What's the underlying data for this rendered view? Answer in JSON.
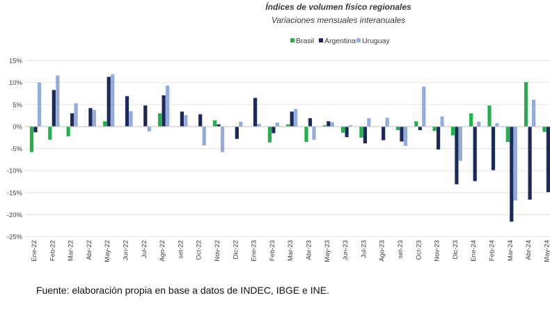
{
  "chart_data": {
    "type": "bar",
    "title": "Índices de volumen físico regionales",
    "subtitle": "Variaciones mensuales interanuales",
    "categories": [
      "Ene-22",
      "Feb-22",
      "Mar-22",
      "Abr-22",
      "May-22",
      "Jun-22",
      "Jul-22",
      "Ago-22",
      "set-22",
      "Oct-22",
      "Nov-22",
      "Dic-22",
      "Ene-23",
      "Feb-23",
      "Mar-23",
      "Abr-23",
      "May-23",
      "Jun-23",
      "Jul-23",
      "Ago-23",
      "set-23",
      "Oct-23",
      "Nov-23",
      "Dic-23",
      "Ene-24",
      "Feb-24",
      "Mar-24",
      "Abr-24",
      "May-24"
    ],
    "series": [
      {
        "name": "Brasil",
        "color": "#22b04a",
        "values": [
          -5.8,
          -3.0,
          -2.2,
          0.0,
          1.2,
          0.0,
          0.0,
          3.0,
          0.0,
          0.0,
          1.4,
          0.0,
          0.0,
          -3.6,
          0.5,
          -3.5,
          0.3,
          -1.4,
          -2.5,
          0.0,
          -0.8,
          1.2,
          -1.0,
          -2.0,
          3.0,
          4.8,
          -3.5,
          10.1,
          -1.2
        ]
      },
      {
        "name": "Argentina",
        "color": "#1b2a5a",
        "values": [
          -1.3,
          8.3,
          3.0,
          4.2,
          11.3,
          6.9,
          4.8,
          7.1,
          3.4,
          2.8,
          0.5,
          -2.8,
          6.5,
          -1.5,
          3.4,
          1.9,
          1.2,
          -2.4,
          -3.8,
          -3.1,
          -3.4,
          -0.8,
          -5.2,
          -13.1,
          -12.4,
          -9.9,
          -21.6,
          -16.6,
          -14.9
        ]
      },
      {
        "name": "Uruguay",
        "color": "#93acdc",
        "values": [
          10.0,
          11.6,
          5.3,
          3.8,
          11.9,
          3.5,
          -1.1,
          9.3,
          2.6,
          -4.3,
          -5.8,
          1.1,
          0.6,
          0.9,
          4.0,
          -3.0,
          1.0,
          0.3,
          1.9,
          2.0,
          -4.4,
          9.1,
          2.3,
          -7.8,
          1.1,
          0.8,
          -16.8,
          6.1,
          null
        ]
      }
    ],
    "ylim": [
      -25,
      15
    ],
    "yticks": [
      15,
      10,
      5,
      0,
      -5,
      -10,
      -15,
      -20,
      -25
    ],
    "ytick_labels": [
      "15%",
      "10%",
      "5%",
      "0%",
      "-5%",
      "-10%",
      "-15%",
      "-20%",
      "-25%"
    ],
    "xlabel": "",
    "ylabel": "",
    "grid": true,
    "legend_position": "top"
  },
  "footer": {
    "source": "Fuente: elaboración propia en base a datos de INDEC, IBGE e INE."
  }
}
